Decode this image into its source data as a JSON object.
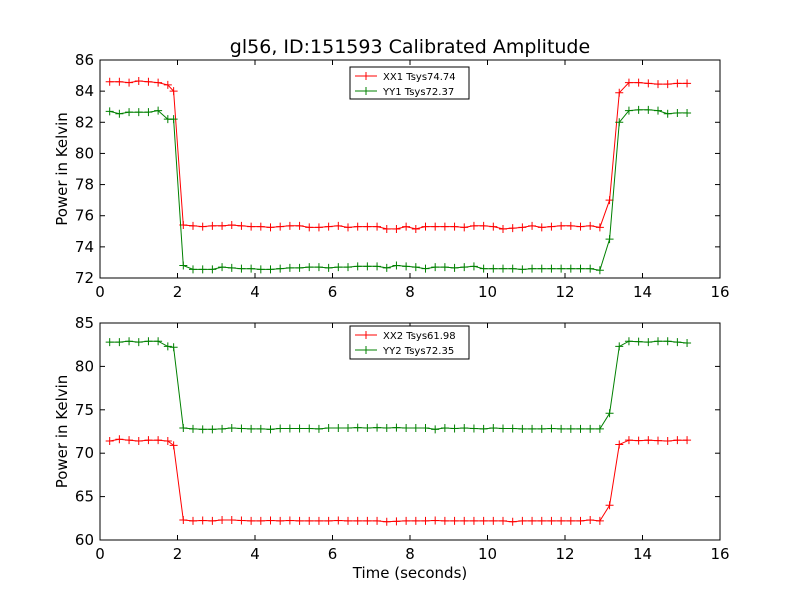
{
  "figure_title": "gl56, ID:151593 Calibrated Amplitude",
  "chart_data": [
    {
      "type": "line",
      "title": "gl56, ID:151593 Calibrated Amplitude",
      "xlabel": "",
      "ylabel": "Power in Kelvin",
      "xlim": [
        0,
        16
      ],
      "ylim": [
        72,
        86
      ],
      "xticks": [
        "0",
        "2",
        "4",
        "6",
        "8",
        "10",
        "12",
        "14",
        "16"
      ],
      "yticks": [
        "72",
        "74",
        "76",
        "78",
        "80",
        "82",
        "84",
        "86"
      ],
      "legend": "top-center",
      "grid": false,
      "x": [
        0.25,
        0.5,
        0.75,
        1.0,
        1.25,
        1.5,
        1.75,
        1.9,
        2.15,
        2.4,
        2.65,
        2.9,
        3.15,
        3.4,
        3.65,
        3.9,
        4.15,
        4.4,
        4.65,
        4.9,
        5.15,
        5.4,
        5.65,
        5.9,
        6.15,
        6.4,
        6.65,
        6.9,
        7.15,
        7.4,
        7.65,
        7.9,
        8.15,
        8.4,
        8.65,
        8.9,
        9.15,
        9.4,
        9.65,
        9.9,
        10.15,
        10.4,
        10.65,
        10.9,
        11.15,
        11.4,
        11.65,
        11.9,
        12.15,
        12.4,
        12.65,
        12.9,
        13.15,
        13.4,
        13.65,
        13.9,
        14.15,
        14.4,
        14.65,
        14.9,
        15.15
      ],
      "series": [
        {
          "name": "XX1 Tsys74.74",
          "color": "#ff0000",
          "values": [
            84.6,
            84.6,
            84.55,
            84.65,
            84.6,
            84.55,
            84.4,
            84.0,
            75.4,
            75.35,
            75.3,
            75.35,
            75.35,
            75.4,
            75.35,
            75.3,
            75.3,
            75.25,
            75.3,
            75.35,
            75.35,
            75.25,
            75.25,
            75.3,
            75.35,
            75.25,
            75.3,
            75.3,
            75.3,
            75.15,
            75.15,
            75.3,
            75.15,
            75.3,
            75.3,
            75.3,
            75.3,
            75.25,
            75.35,
            75.35,
            75.3,
            75.15,
            75.2,
            75.25,
            75.35,
            75.25,
            75.3,
            75.35,
            75.35,
            75.3,
            75.35,
            75.25,
            77.0,
            83.9,
            84.55,
            84.55,
            84.5,
            84.45,
            84.45,
            84.5,
            84.5
          ]
        },
        {
          "name": "YY1 Tsys72.37",
          "color": "#008000",
          "values": [
            82.7,
            82.55,
            82.65,
            82.65,
            82.65,
            82.75,
            82.2,
            82.2,
            72.8,
            72.55,
            72.55,
            72.55,
            72.7,
            72.65,
            72.6,
            72.6,
            72.55,
            72.55,
            72.6,
            72.65,
            72.65,
            72.7,
            72.7,
            72.65,
            72.7,
            72.7,
            72.75,
            72.75,
            72.75,
            72.65,
            72.8,
            72.75,
            72.7,
            72.6,
            72.7,
            72.7,
            72.65,
            72.7,
            72.75,
            72.6,
            72.6,
            72.6,
            72.6,
            72.55,
            72.6,
            72.6,
            72.6,
            72.6,
            72.6,
            72.6,
            72.6,
            72.5,
            74.5,
            82.0,
            82.75,
            82.8,
            82.8,
            82.75,
            82.55,
            82.6,
            82.6
          ]
        }
      ]
    },
    {
      "type": "line",
      "title": "",
      "xlabel": "Time (seconds)",
      "ylabel": "Power in Kelvin",
      "xlim": [
        0,
        16
      ],
      "ylim": [
        60,
        85
      ],
      "xticks": [
        "0",
        "2",
        "4",
        "6",
        "8",
        "10",
        "12",
        "14",
        "16"
      ],
      "yticks": [
        "60",
        "65",
        "70",
        "75",
        "80",
        "85"
      ],
      "legend": "top-center",
      "grid": false,
      "x": [
        0.25,
        0.5,
        0.75,
        1.0,
        1.25,
        1.5,
        1.75,
        1.9,
        2.15,
        2.4,
        2.65,
        2.9,
        3.15,
        3.4,
        3.65,
        3.9,
        4.15,
        4.4,
        4.65,
        4.9,
        5.15,
        5.4,
        5.65,
        5.9,
        6.15,
        6.4,
        6.65,
        6.9,
        7.15,
        7.4,
        7.65,
        7.9,
        8.15,
        8.4,
        8.65,
        8.9,
        9.15,
        9.4,
        9.65,
        9.9,
        10.15,
        10.4,
        10.65,
        10.9,
        11.15,
        11.4,
        11.65,
        11.9,
        12.15,
        12.4,
        12.65,
        12.9,
        13.15,
        13.4,
        13.65,
        13.9,
        14.15,
        14.4,
        14.65,
        14.9,
        15.15
      ],
      "series": [
        {
          "name": "XX2 Tsys61.98",
          "color": "#ff0000",
          "values": [
            71.4,
            71.6,
            71.5,
            71.4,
            71.5,
            71.5,
            71.4,
            70.9,
            62.3,
            62.2,
            62.25,
            62.2,
            62.3,
            62.3,
            62.25,
            62.2,
            62.2,
            62.25,
            62.2,
            62.25,
            62.2,
            62.2,
            62.2,
            62.2,
            62.25,
            62.2,
            62.2,
            62.2,
            62.2,
            62.1,
            62.15,
            62.2,
            62.2,
            62.2,
            62.25,
            62.2,
            62.2,
            62.2,
            62.2,
            62.2,
            62.2,
            62.2,
            62.1,
            62.2,
            62.2,
            62.2,
            62.2,
            62.2,
            62.2,
            62.2,
            62.3,
            62.2,
            64.0,
            71.0,
            71.5,
            71.45,
            71.5,
            71.45,
            71.4,
            71.5,
            71.5
          ]
        },
        {
          "name": "YY2 Tsys72.35",
          "color": "#008000",
          "values": [
            82.8,
            82.8,
            82.9,
            82.8,
            82.9,
            82.9,
            82.3,
            82.2,
            72.9,
            72.8,
            72.75,
            72.75,
            72.8,
            72.9,
            72.85,
            72.8,
            72.8,
            72.75,
            72.85,
            72.85,
            72.85,
            72.85,
            72.8,
            72.9,
            72.9,
            72.9,
            72.95,
            72.9,
            72.95,
            72.9,
            72.95,
            72.9,
            72.9,
            72.9,
            72.75,
            72.9,
            72.85,
            72.9,
            72.85,
            72.8,
            72.9,
            72.85,
            72.85,
            72.8,
            72.8,
            72.8,
            72.85,
            72.8,
            72.8,
            72.8,
            72.8,
            72.8,
            74.6,
            82.3,
            82.9,
            82.85,
            82.8,
            82.9,
            82.9,
            82.8,
            82.7
          ]
        }
      ]
    }
  ]
}
